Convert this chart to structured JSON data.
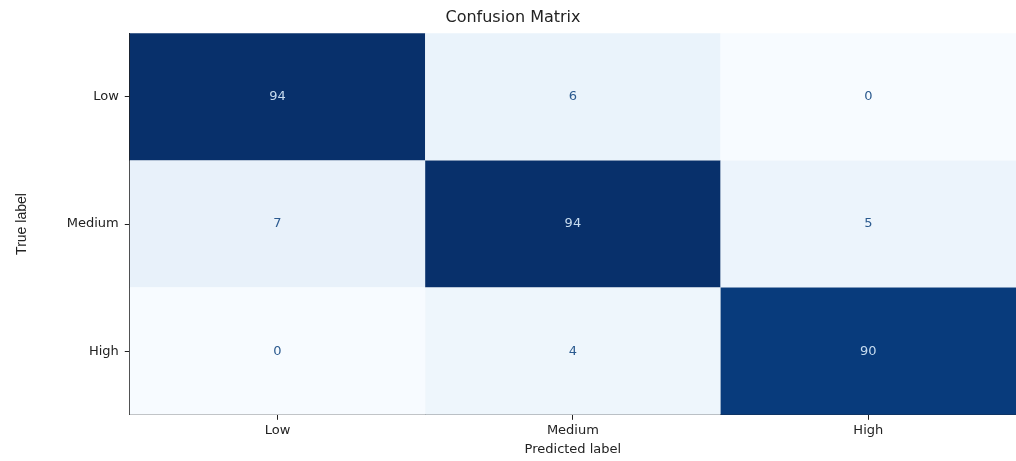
{
  "chart_data": {
    "type": "heatmap",
    "title": "Confusion Matrix",
    "xlabel": "Predicted label",
    "ylabel": "True label",
    "categories": [
      "Low",
      "Medium",
      "High"
    ],
    "y_categories": [
      "Low",
      "Medium",
      "High"
    ],
    "cells": [
      [
        94,
        6,
        0
      ],
      [
        7,
        94,
        5
      ],
      [
        0,
        4,
        90
      ]
    ],
    "data_labels": true
  }
}
